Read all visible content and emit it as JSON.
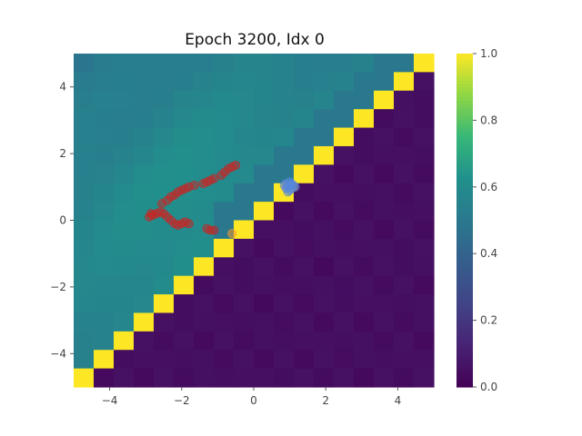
{
  "chart_data": {
    "type": "heatmap",
    "title": "Epoch 3200, Idx 0",
    "xlabel": "",
    "ylabel": "",
    "xlim": [
      -5,
      5
    ],
    "ylim": [
      -5,
      5
    ],
    "grid": false,
    "x_ticks": [
      -4,
      -2,
      0,
      2,
      4
    ],
    "y_ticks": [
      -4,
      -2,
      0,
      2,
      4
    ],
    "x_tick_labels": [
      "−4",
      "−2",
      "0",
      "2",
      "4"
    ],
    "y_tick_labels": [
      "−4",
      "−2",
      "0",
      "2",
      "4"
    ],
    "colormap": "viridis",
    "colorbar": {
      "range": [
        0.0,
        1.0
      ],
      "ticks": [
        0.0,
        0.2,
        0.4,
        0.6,
        0.8,
        1.0
      ],
      "tick_labels": [
        "0.0",
        "0.2",
        "0.4",
        "0.6",
        "0.8",
        "1.0"
      ]
    },
    "grid_size": 18,
    "series": [
      {
        "color": "#cc2222",
        "points": [
          [
            -2.9,
            0.1
          ],
          [
            -2.85,
            0.2
          ],
          [
            -2.8,
            0.15
          ],
          [
            -2.7,
            0.2
          ],
          [
            -2.6,
            0.25
          ],
          [
            -2.5,
            0.2
          ],
          [
            -2.4,
            0.1
          ],
          [
            -2.3,
            0.0
          ],
          [
            -2.2,
            -0.1
          ],
          [
            -2.1,
            -0.15
          ],
          [
            -2.0,
            -0.1
          ],
          [
            -1.9,
            -0.05
          ],
          [
            -1.8,
            -0.1
          ],
          [
            -1.3,
            -0.25
          ],
          [
            -1.2,
            -0.3
          ],
          [
            -1.1,
            -0.3
          ],
          [
            -2.55,
            0.5
          ],
          [
            -2.4,
            0.6
          ],
          [
            -2.3,
            0.7
          ],
          [
            -2.2,
            0.75
          ],
          [
            -2.1,
            0.85
          ],
          [
            -2.0,
            0.9
          ],
          [
            -1.9,
            0.95
          ],
          [
            -1.8,
            1.0
          ],
          [
            -1.65,
            1.05
          ],
          [
            -1.4,
            1.1
          ],
          [
            -1.3,
            1.15
          ],
          [
            -1.2,
            1.2
          ],
          [
            -1.1,
            1.25
          ],
          [
            -0.9,
            1.35
          ],
          [
            -0.8,
            1.45
          ],
          [
            -0.7,
            1.55
          ],
          [
            -0.6,
            1.6
          ],
          [
            -0.5,
            1.65
          ]
        ]
      },
      {
        "color": "#ff9922",
        "points": [
          [
            -0.6,
            -0.4
          ],
          [
            0.9,
            1.05
          ],
          [
            1.1,
            1.0
          ]
        ]
      },
      {
        "color": "#5588dd",
        "points": [
          [
            0.95,
            1.0
          ],
          [
            1.0,
            1.05
          ],
          [
            1.05,
            0.95
          ],
          [
            0.9,
            0.95
          ],
          [
            1.1,
            1.05
          ],
          [
            1.0,
            0.9
          ],
          [
            0.85,
            1.05
          ],
          [
            1.15,
            1.0
          ],
          [
            1.0,
            1.15
          ],
          [
            0.95,
            0.85
          ],
          [
            1.05,
            1.1
          ],
          [
            0.9,
            1.1
          ]
        ]
      }
    ]
  }
}
